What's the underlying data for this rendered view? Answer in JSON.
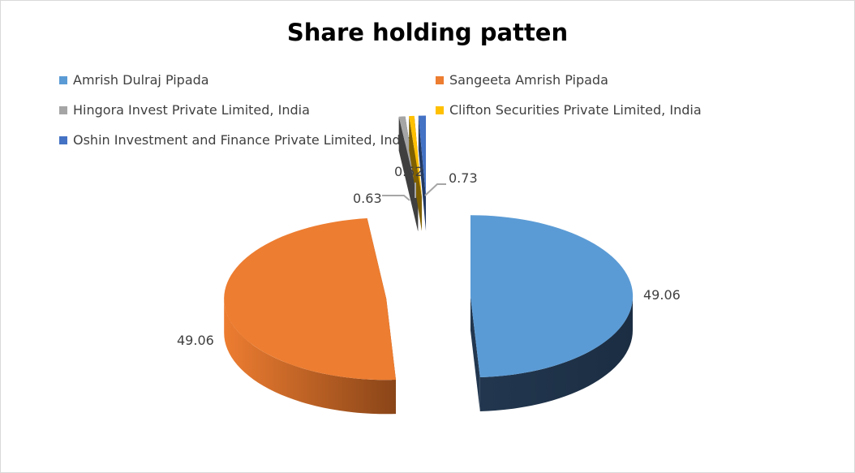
{
  "chart_data": {
    "type": "pie",
    "style": "3d-exploded",
    "title": "Share holding patten",
    "legend_position": "top",
    "slices": [
      {
        "name": "Amrish Dulraj Pipada",
        "value": 49.06,
        "color": "#5B9BD5",
        "dark": "#22374F"
      },
      {
        "name": "Sangeeta Amrish Pipada",
        "value": 49.06,
        "color": "#ED7D31",
        "dark": "#8A4518"
      },
      {
        "name": "Hingora Invest Private Limited, India",
        "value": 0.63,
        "color": "#A5A5A5",
        "dark": "#3F3F3F"
      },
      {
        "name": "Clifton Securities Private Limited, India",
        "value": 0.52,
        "color": "#FFC000",
        "dark": "#7F6000"
      },
      {
        "name": "Oshin Investment and Finance Private Limited, India",
        "value": 0.73,
        "color": "#4472C4",
        "dark": "#223962"
      }
    ],
    "data_labels": [
      "49.06",
      "49.06",
      "0.63",
      "0.52",
      "0.73"
    ]
  }
}
